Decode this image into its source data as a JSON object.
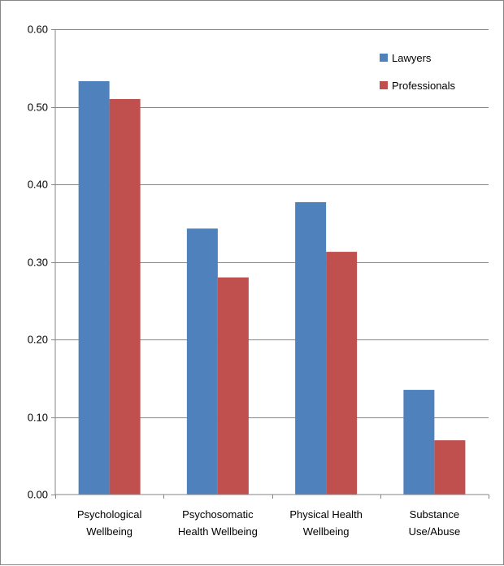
{
  "chart_data": {
    "type": "bar",
    "categories": [
      [
        "Psychological",
        "Wellbeing"
      ],
      [
        "Psychosomatic",
        "Health Wellbeing"
      ],
      [
        "Physical Health",
        "Wellbeing"
      ],
      [
        "Substance",
        "Use/Abuse"
      ]
    ],
    "series": [
      {
        "name": "Lawyers",
        "color": "#4f81bd",
        "values": [
          0.533,
          0.343,
          0.377,
          0.135
        ]
      },
      {
        "name": "Professionals",
        "color": "#c0504d",
        "values": [
          0.51,
          0.28,
          0.313,
          0.07
        ]
      }
    ],
    "y_ticks": [
      "0.00",
      "0.10",
      "0.20",
      "0.30",
      "0.40",
      "0.50",
      "0.60"
    ],
    "ylim": [
      0,
      0.6
    ],
    "grid": true,
    "legend_position": "top-right",
    "title": "",
    "xlabel": "",
    "ylabel": ""
  }
}
